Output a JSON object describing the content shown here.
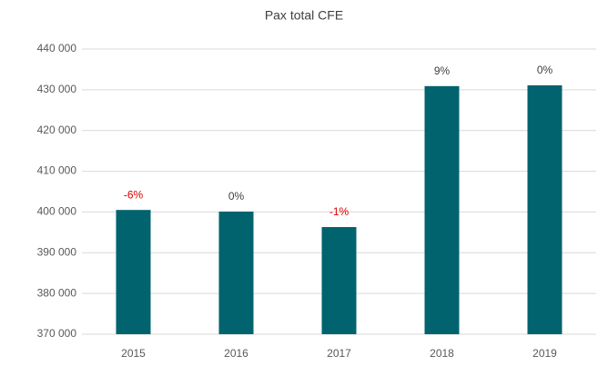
{
  "chart_data": {
    "type": "bar",
    "title": "Pax total CFE",
    "categories": [
      "2015",
      "2016",
      "2017",
      "2018",
      "2019"
    ],
    "values": [
      400500,
      400100,
      396300,
      430900,
      431100
    ],
    "color": "#00636e",
    "annotations": [
      "-6%",
      "0%",
      "-1%",
      "9%",
      "0%"
    ],
    "annotation_colors": [
      "#e00000",
      "#404040",
      "#e00000",
      "#404040",
      "#404040"
    ],
    "ylim": [
      370000,
      440000
    ],
    "yticks": [
      {
        "value": 370000,
        "label": "370 000"
      },
      {
        "value": 380000,
        "label": "380 000"
      },
      {
        "value": 390000,
        "label": "390 000"
      },
      {
        "value": 400000,
        "label": "400 000"
      },
      {
        "value": 410000,
        "label": "410 000"
      },
      {
        "value": 420000,
        "label": "420 000"
      },
      {
        "value": 430000,
        "label": "430 000"
      },
      {
        "value": 440000,
        "label": "440 000"
      }
    ],
    "grid": true
  }
}
